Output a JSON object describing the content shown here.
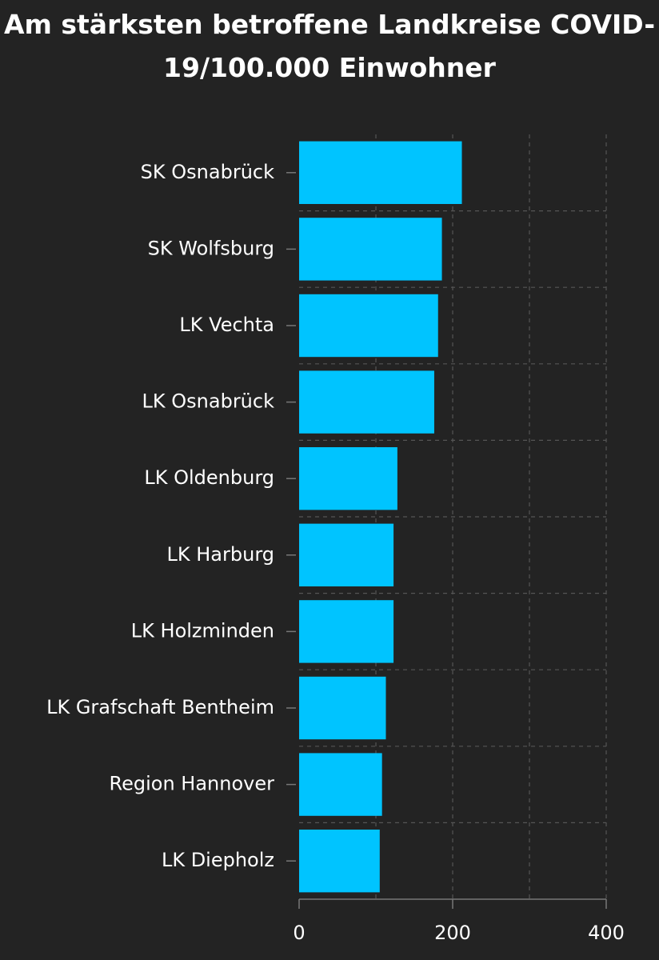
{
  "chart_data": {
    "type": "bar",
    "orientation": "horizontal",
    "title": "Am stärksten betroffene Landkreise COVID-19/100.000 Einwohner",
    "categories": [
      "SK Osnabrück",
      "SK Wolfsburg",
      "LK Vechta",
      "LK Osnabrück",
      "LK Oldenburg",
      "LK Harburg",
      "LK Holzminden",
      "LK Grafschaft Bentheim",
      "Region Hannover",
      "LK Diepholz"
    ],
    "values": [
      212,
      186,
      181,
      176,
      128,
      123,
      123,
      113,
      108,
      105
    ],
    "xlim": [
      0,
      400
    ],
    "xticks": [
      0,
      200,
      400
    ],
    "xlabel": "",
    "ylabel": "",
    "grid": true,
    "bar_color": "#00c4ff",
    "background_color": "#232323",
    "grid_color": "#555555"
  }
}
